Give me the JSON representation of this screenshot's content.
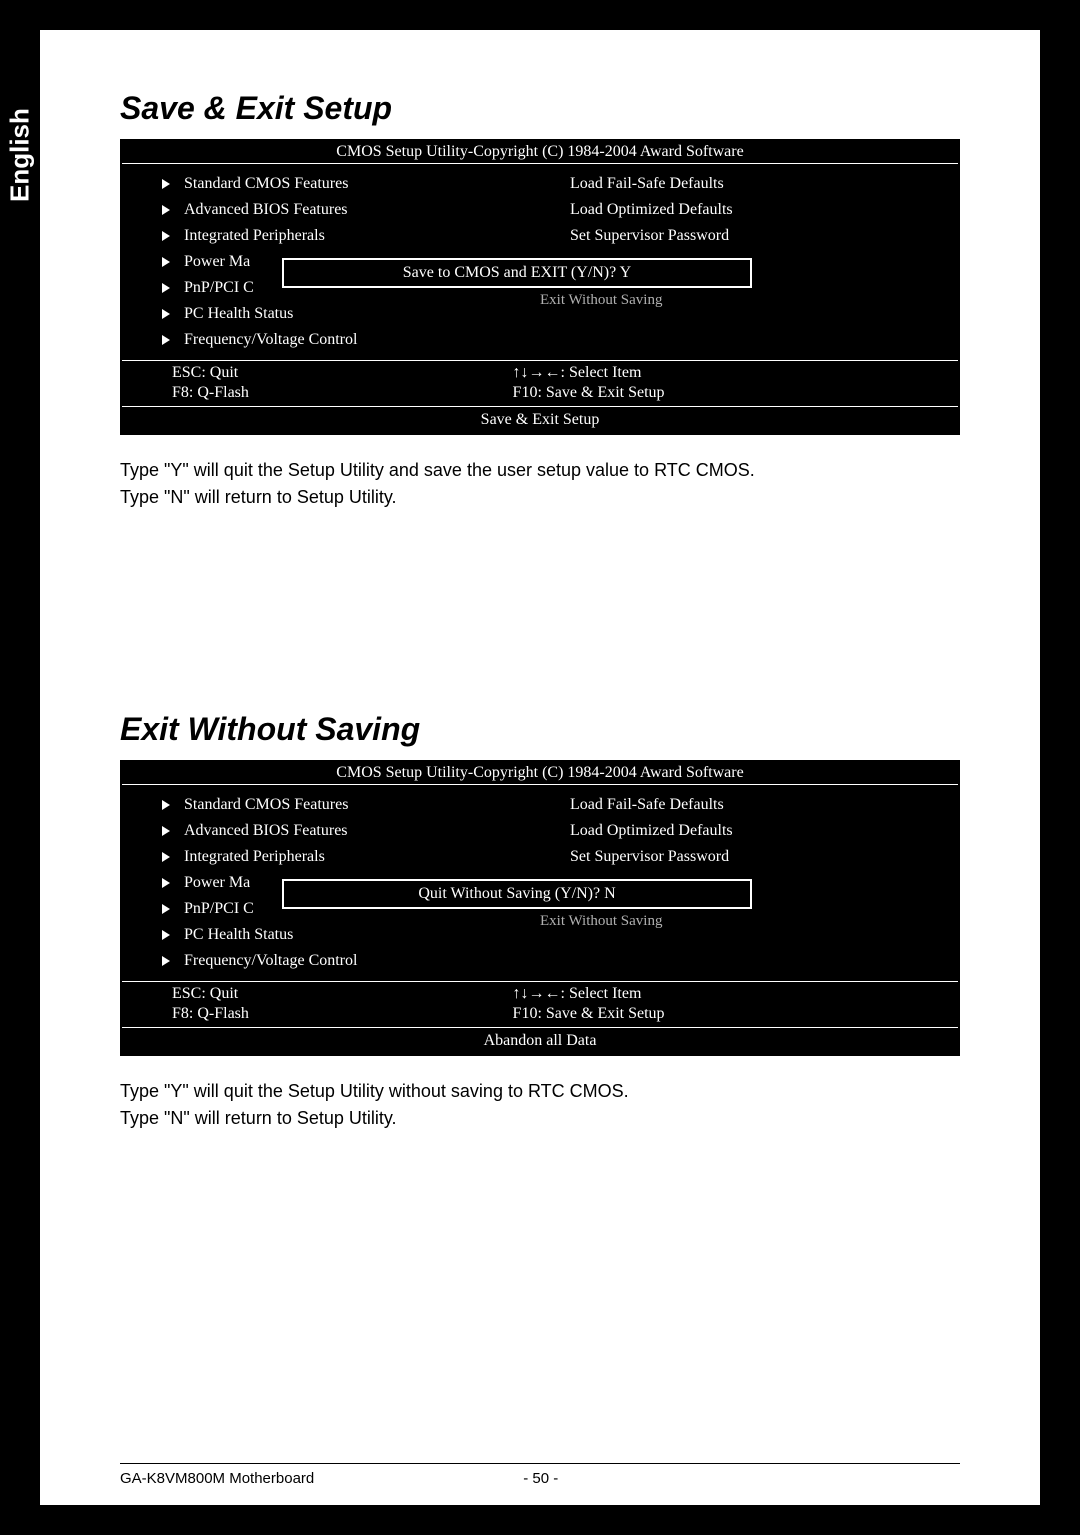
{
  "language_tab": "English",
  "section1": {
    "title": "Save & Exit Setup",
    "bios": {
      "header": "CMOS Setup Utility-Copyright (C) 1984-2004 Award Software",
      "left_items": [
        "Standard CMOS Features",
        "Advanced BIOS Features",
        "Integrated Peripherals",
        "Power Ma",
        "PnP/PCI C",
        "PC Health Status",
        "Frequency/Voltage Control"
      ],
      "right_items": [
        "Load Fail-Safe Defaults",
        "Load Optimized Defaults",
        "Set Supervisor Password",
        "",
        "",
        "Exit Without Saving"
      ],
      "dialog": "Save to CMOS and EXIT (Y/N)? Y",
      "help_left1": "ESC: Quit",
      "help_right1": "↑↓→←: Select Item",
      "help_left2": "F8: Q-Flash",
      "help_right2": "F10: Save & Exit Setup",
      "footer": "Save & Exit Setup"
    },
    "desc_line1": "Type \"Y\" will quit the Setup Utility and save the user setup value to RTC CMOS.",
    "desc_line2": "Type \"N\" will return to Setup Utility."
  },
  "section2": {
    "title": "Exit Without Saving",
    "bios": {
      "header": "CMOS Setup Utility-Copyright (C) 1984-2004 Award Software",
      "left_items": [
        "Standard CMOS Features",
        "Advanced BIOS Features",
        "Integrated Peripherals",
        "Power Ma",
        "PnP/PCI C",
        "PC Health Status",
        "Frequency/Voltage Control"
      ],
      "right_items": [
        "Load Fail-Safe Defaults",
        "Load Optimized Defaults",
        "Set Supervisor Password",
        "",
        "",
        "Exit Without Saving"
      ],
      "dialog": "Quit Without Saving (Y/N)? N",
      "help_left1": "ESC: Quit",
      "help_right1": "↑↓→←: Select Item",
      "help_left2": "F8: Q-Flash",
      "help_right2": "F10: Save & Exit Setup",
      "footer": "Abandon all Data"
    },
    "desc_line1": "Type \"Y\" will quit the Setup Utility without saving to RTC CMOS.",
    "desc_line2": "Type \"N\" will return to Setup Utility."
  },
  "page_footer": {
    "left": "GA-K8VM800M Motherboard",
    "page": "- 50 -"
  },
  "colors": {
    "background": "#000000",
    "page_bg": "#ffffff",
    "bios_bg": "#000000",
    "bios_fg": "#ffffff",
    "hidden_text": "#b0b0b0"
  }
}
